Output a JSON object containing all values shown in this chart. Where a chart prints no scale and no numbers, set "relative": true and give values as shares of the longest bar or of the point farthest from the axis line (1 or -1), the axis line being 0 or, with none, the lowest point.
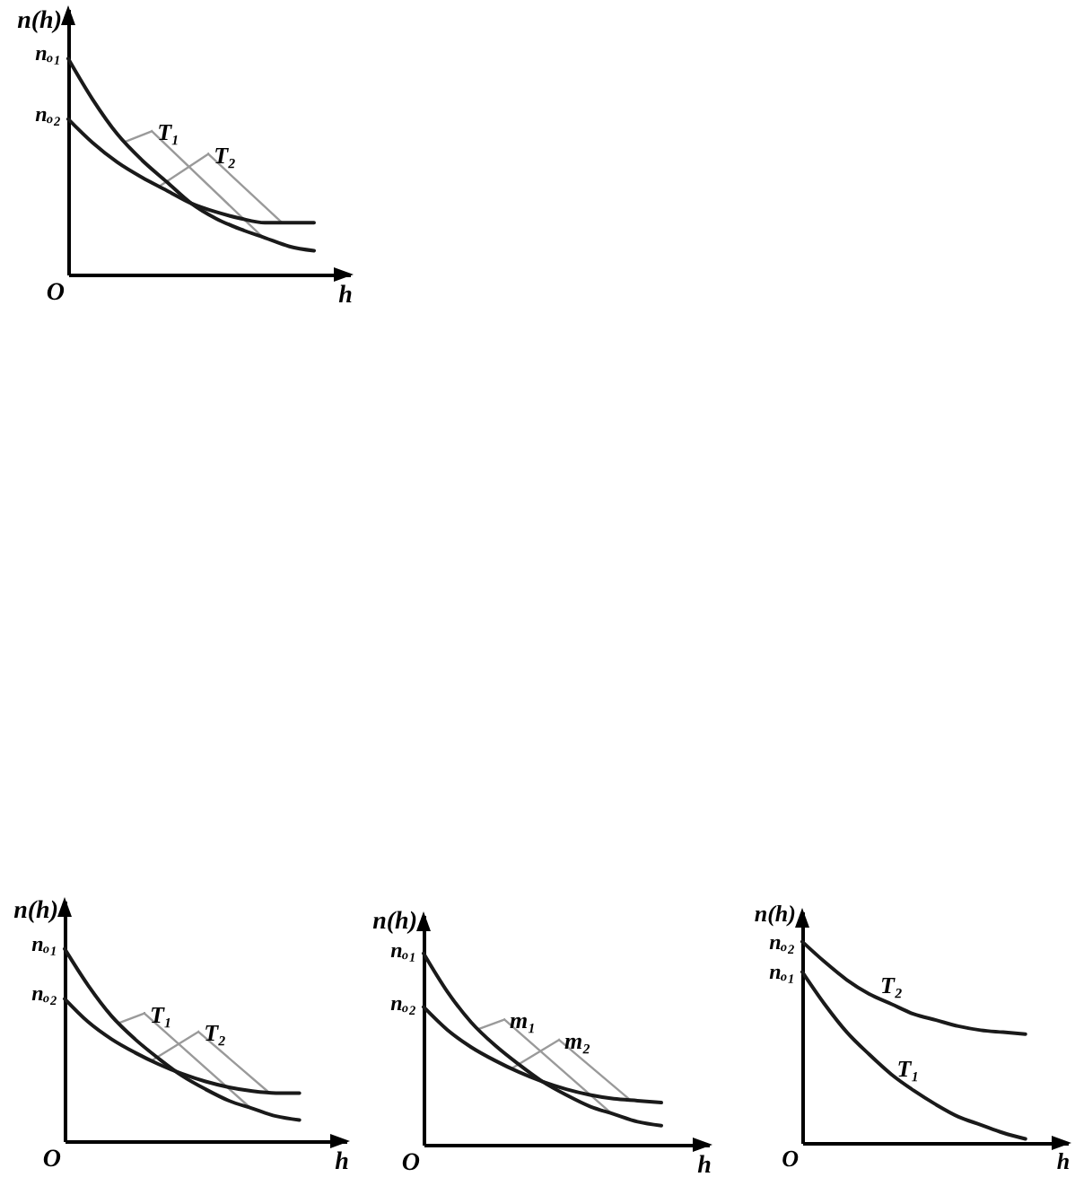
{
  "chart_data": [
    {
      "type": "line",
      "xlabel": "h",
      "ylabel": "n(h)",
      "relative": true,
      "categories": [
        null,
        null,
        null,
        null,
        null,
        null,
        null,
        null,
        null,
        null,
        null
      ],
      "series": [
        {
          "name": "T₁",
          "color": "#1a1a1a",
          "values": [
            1.0,
            0.81,
            0.65,
            0.53,
            0.43,
            0.33,
            0.26,
            0.21,
            0.17,
            0.13,
            0.11
          ]
        },
        {
          "name": "T₂",
          "color": "#1a1a1a",
          "values": [
            0.72,
            0.61,
            0.52,
            0.45,
            0.39,
            0.33,
            0.29,
            0.26,
            0.24,
            0.24,
            0.24
          ]
        }
      ],
      "annotations": [
        "nₒ₁",
        "nₒ₂",
        "O"
      ]
    },
    {
      "type": "line",
      "xlabel": "h",
      "ylabel": "n(h)",
      "relative": true,
      "categories": [
        null,
        null,
        null,
        null,
        null,
        null,
        null,
        null,
        null,
        null,
        null
      ],
      "series": [
        {
          "name": "T₁",
          "color": "#1a1a1a",
          "values": [
            1.0,
            0.81,
            0.65,
            0.53,
            0.43,
            0.34,
            0.27,
            0.21,
            0.17,
            0.13,
            0.11
          ]
        },
        {
          "name": "T₂",
          "color": "#1a1a1a",
          "values": [
            0.74,
            0.62,
            0.53,
            0.46,
            0.4,
            0.35,
            0.31,
            0.28,
            0.26,
            0.25,
            0.25
          ]
        }
      ],
      "annotations": [
        "nₒ₁",
        "nₒ₂",
        "O"
      ]
    },
    {
      "type": "line",
      "xlabel": "h",
      "ylabel": "n(h)",
      "relative": true,
      "categories": [
        null,
        null,
        null,
        null,
        null,
        null,
        null,
        null,
        null,
        null,
        null
      ],
      "series": [
        {
          "name": "m₁",
          "color": "#1a1a1a",
          "values": [
            1.0,
            0.8,
            0.64,
            0.52,
            0.42,
            0.33,
            0.26,
            0.2,
            0.16,
            0.12,
            0.1
          ]
        },
        {
          "name": "m₂",
          "color": "#1a1a1a",
          "values": [
            0.72,
            0.6,
            0.51,
            0.44,
            0.38,
            0.33,
            0.29,
            0.26,
            0.24,
            0.23,
            0.22
          ]
        }
      ],
      "annotations": [
        "nₒ₁",
        "nₒ₂",
        "O"
      ]
    },
    {
      "type": "line",
      "xlabel": "h",
      "ylabel": "n(h)",
      "relative": true,
      "categories": [
        null,
        null,
        null,
        null,
        null,
        null,
        null,
        null,
        null,
        null,
        null
      ],
      "series": [
        {
          "name": "T₁",
          "color": "#1a1a1a",
          "values": [
            0.85,
            0.69,
            0.55,
            0.44,
            0.34,
            0.26,
            0.19,
            0.13,
            0.09,
            0.05,
            0.02
          ]
        },
        {
          "name": "T₂",
          "color": "#1a1a1a",
          "values": [
            1.0,
            0.9,
            0.81,
            0.74,
            0.69,
            0.64,
            0.61,
            0.58,
            0.56,
            0.55,
            0.54
          ]
        }
      ],
      "annotations": [
        "nₒ₂",
        "nₒ₁",
        "O"
      ]
    }
  ]
}
